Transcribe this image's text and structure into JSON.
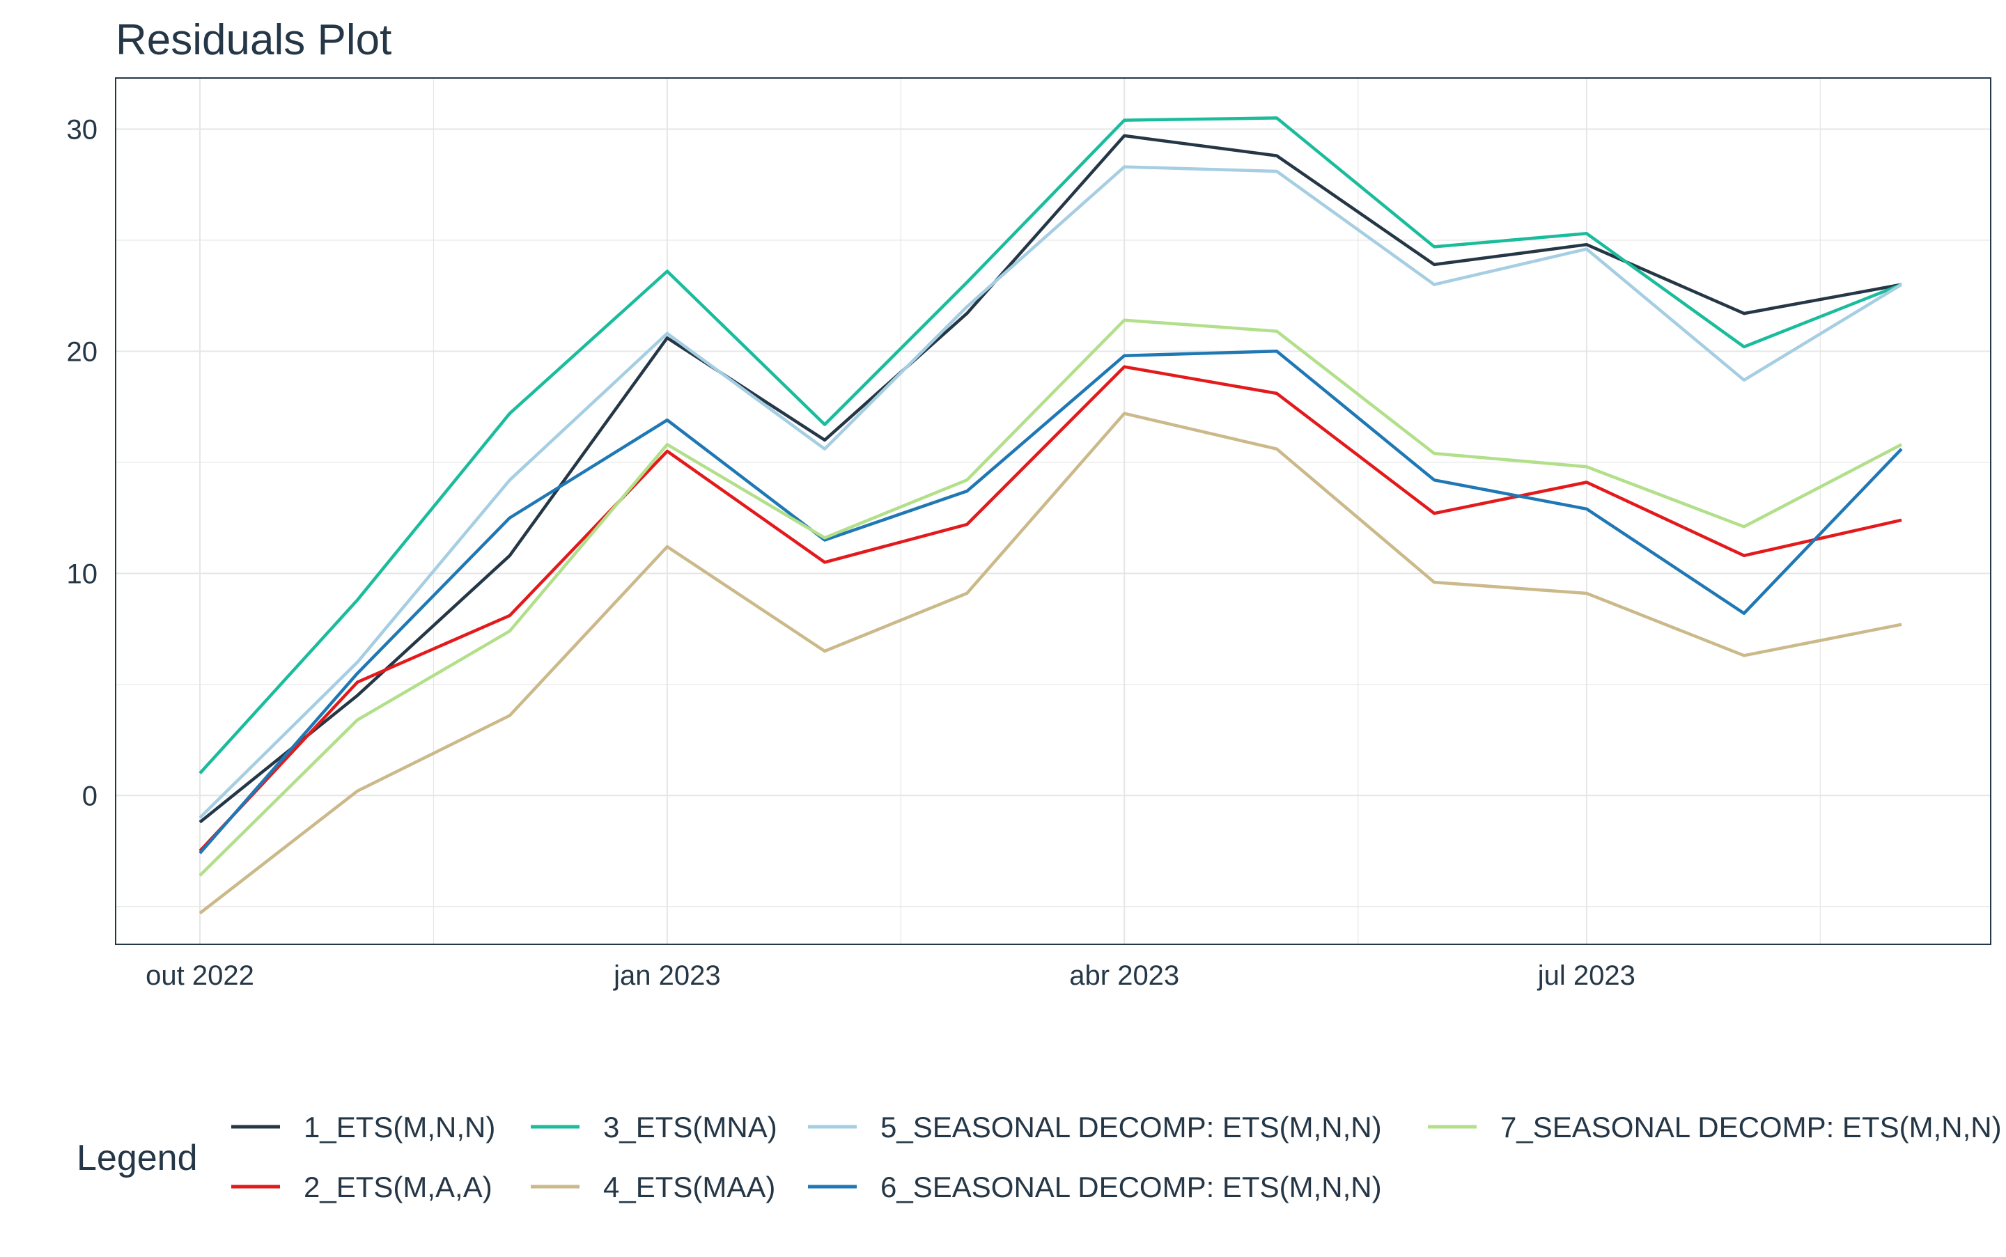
{
  "chart_data": {
    "type": "line",
    "title": "Residuals Plot",
    "xlabel": "",
    "ylabel": "",
    "x": [
      "2022-10-01",
      "2022-11-01",
      "2022-12-01",
      "2023-01-01",
      "2023-02-01",
      "2023-03-01",
      "2023-04-01",
      "2023-05-01",
      "2023-06-01",
      "2023-07-01",
      "2023-08-01",
      "2023-09-01"
    ],
    "x_ticks": [
      {
        "date": "2022-10-01",
        "label": "out 2022"
      },
      {
        "date": "2023-01-01",
        "label": "jan 2023"
      },
      {
        "date": "2023-04-01",
        "label": "abr 2023"
      },
      {
        "date": "2023-07-01",
        "label": "jul 2023"
      }
    ],
    "y_ticks": [
      0,
      10,
      20,
      30
    ],
    "ylim": [
      -6.7,
      32.3
    ],
    "grid": true,
    "legend_title": "Legend",
    "legend_position": "bottom",
    "series": [
      {
        "name": "1_ETS(M,N,N)",
        "color": "#253746",
        "values": [
          -1.2,
          4.5,
          10.8,
          20.6,
          16.0,
          21.7,
          29.7,
          28.8,
          23.9,
          24.8,
          21.7,
          23.0
        ]
      },
      {
        "name": "2_ETS(M,A,A)",
        "color": "#e31a1c",
        "values": [
          -2.5,
          5.1,
          8.1,
          15.5,
          10.5,
          12.2,
          19.3,
          18.1,
          12.7,
          14.1,
          10.8,
          12.4
        ]
      },
      {
        "name": "3_ETS(MNA)",
        "color": "#1abc9c",
        "values": [
          1.0,
          8.8,
          17.2,
          23.6,
          16.7,
          23.1,
          30.4,
          30.5,
          24.7,
          25.3,
          20.2,
          23.0
        ]
      },
      {
        "name": "4_ETS(MAA)",
        "color": "#cbb98a",
        "values": [
          -5.3,
          0.2,
          3.6,
          11.2,
          6.5,
          9.1,
          17.2,
          15.6,
          9.6,
          9.1,
          6.3,
          7.7
        ]
      },
      {
        "name": "5_SEASONAL DECOMP: ETS(M,N,N)",
        "color": "#a6cee3",
        "values": [
          -1.0,
          6.0,
          14.2,
          20.8,
          15.6,
          22.0,
          28.3,
          28.1,
          23.0,
          24.6,
          18.7,
          23.0
        ]
      },
      {
        "name": "6_SEASONAL DECOMP: ETS(M,N,N)",
        "color": "#1f78b4",
        "values": [
          -2.6,
          5.5,
          12.5,
          16.9,
          11.5,
          13.7,
          19.8,
          20.0,
          14.2,
          12.9,
          8.2,
          15.6
        ]
      },
      {
        "name": "7_SEASONAL DECOMP: ETS(M,N,N)",
        "color": "#b2df8a",
        "values": [
          -3.6,
          3.4,
          7.4,
          15.8,
          11.6,
          14.2,
          21.4,
          20.9,
          15.4,
          14.8,
          12.1,
          15.8
        ]
      }
    ],
    "colors": {
      "text": "#253746",
      "grid": "#e6e6e6",
      "panel_border": "#253746"
    }
  }
}
